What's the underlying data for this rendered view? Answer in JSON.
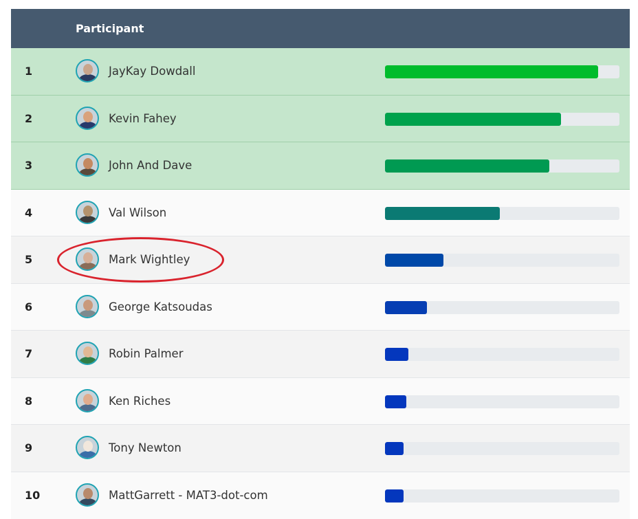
{
  "header": {
    "participant_label": "Participant"
  },
  "annotation": {
    "highlight_color": "#d9232d",
    "highlighted_rank": "5"
  },
  "rows": [
    {
      "rank": "1",
      "name": "JayKay Dowdall",
      "progress": 0.91,
      "bar_color": "#00bc2c",
      "avatar_face": "#c9a58c",
      "avatar_body": "#2a3a60"
    },
    {
      "rank": "2",
      "name": "Kevin Fahey",
      "progress": 0.75,
      "bar_color": "#00a24c",
      "avatar_face": "#d9a27c",
      "avatar_body": "#283a6b"
    },
    {
      "rank": "3",
      "name": "John And Dave",
      "progress": 0.7,
      "bar_color": "#009a52",
      "avatar_face": "#c48a62",
      "avatar_body": "#5a4a3a"
    },
    {
      "rank": "4",
      "name": "Val Wilson",
      "progress": 0.49,
      "bar_color": "#0b7a73",
      "avatar_face": "#b3926c",
      "avatar_body": "#3a3a3a"
    },
    {
      "rank": "5",
      "name": "Mark Wightley",
      "progress": 0.25,
      "bar_color": "#0048a8",
      "avatar_face": "#d7b099",
      "avatar_body": "#8a6c58"
    },
    {
      "rank": "6",
      "name": "George Katsoudas",
      "progress": 0.18,
      "bar_color": "#063eb3",
      "avatar_face": "#c99a7c",
      "avatar_body": "#7e8a8e"
    },
    {
      "rank": "7",
      "name": "Robin Palmer",
      "progress": 0.1,
      "bar_color": "#0437bd",
      "avatar_face": "#e1b894",
      "avatar_body": "#2f7d46"
    },
    {
      "rank": "8",
      "name": "Ken Riches",
      "progress": 0.09,
      "bar_color": "#0437bd",
      "avatar_face": "#e0ac8e",
      "avatar_body": "#4d6c8e"
    },
    {
      "rank": "9",
      "name": "Tony Newton",
      "progress": 0.08,
      "bar_color": "#0437bd",
      "avatar_face": "#f1e7dc",
      "avatar_body": "#3a6ea8"
    },
    {
      "rank": "10",
      "name": "MattGarrett - MAT3-dot-com",
      "progress": 0.08,
      "bar_color": "#0437bd",
      "avatar_face": "#b88a6c",
      "avatar_body": "#34495e"
    }
  ]
}
